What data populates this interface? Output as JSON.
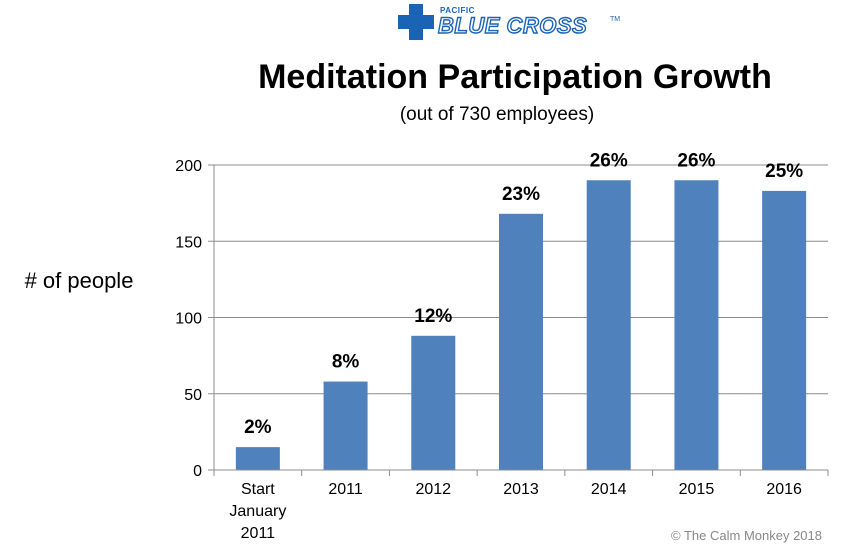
{
  "logo": {
    "small_text": "PACIFIC",
    "big_text": "BLUE CROSS",
    "tm": "TM",
    "brand_color": "#1a63b5"
  },
  "copyright": "© The Calm Monkey 2018",
  "chart_data": {
    "type": "bar",
    "title": "Meditation Participation Growth",
    "subtitle": "(out of 730 employees)",
    "xlabel": "",
    "ylabel": "# of people",
    "ylim": [
      0,
      200
    ],
    "yticks": [
      0,
      50,
      100,
      150,
      200
    ],
    "grid": true,
    "bar_color": "#4f81bd",
    "categories": [
      [
        "Start",
        "January",
        "2011"
      ],
      [
        "2011"
      ],
      [
        "2012"
      ],
      [
        "2013"
      ],
      [
        "2014"
      ],
      [
        "2015"
      ],
      [
        "2016"
      ]
    ],
    "values": [
      15,
      58,
      88,
      168,
      190,
      190,
      183
    ],
    "data_labels": [
      "2%",
      "8%",
      "12%",
      "23%",
      "26%",
      "26%",
      "25%"
    ]
  }
}
